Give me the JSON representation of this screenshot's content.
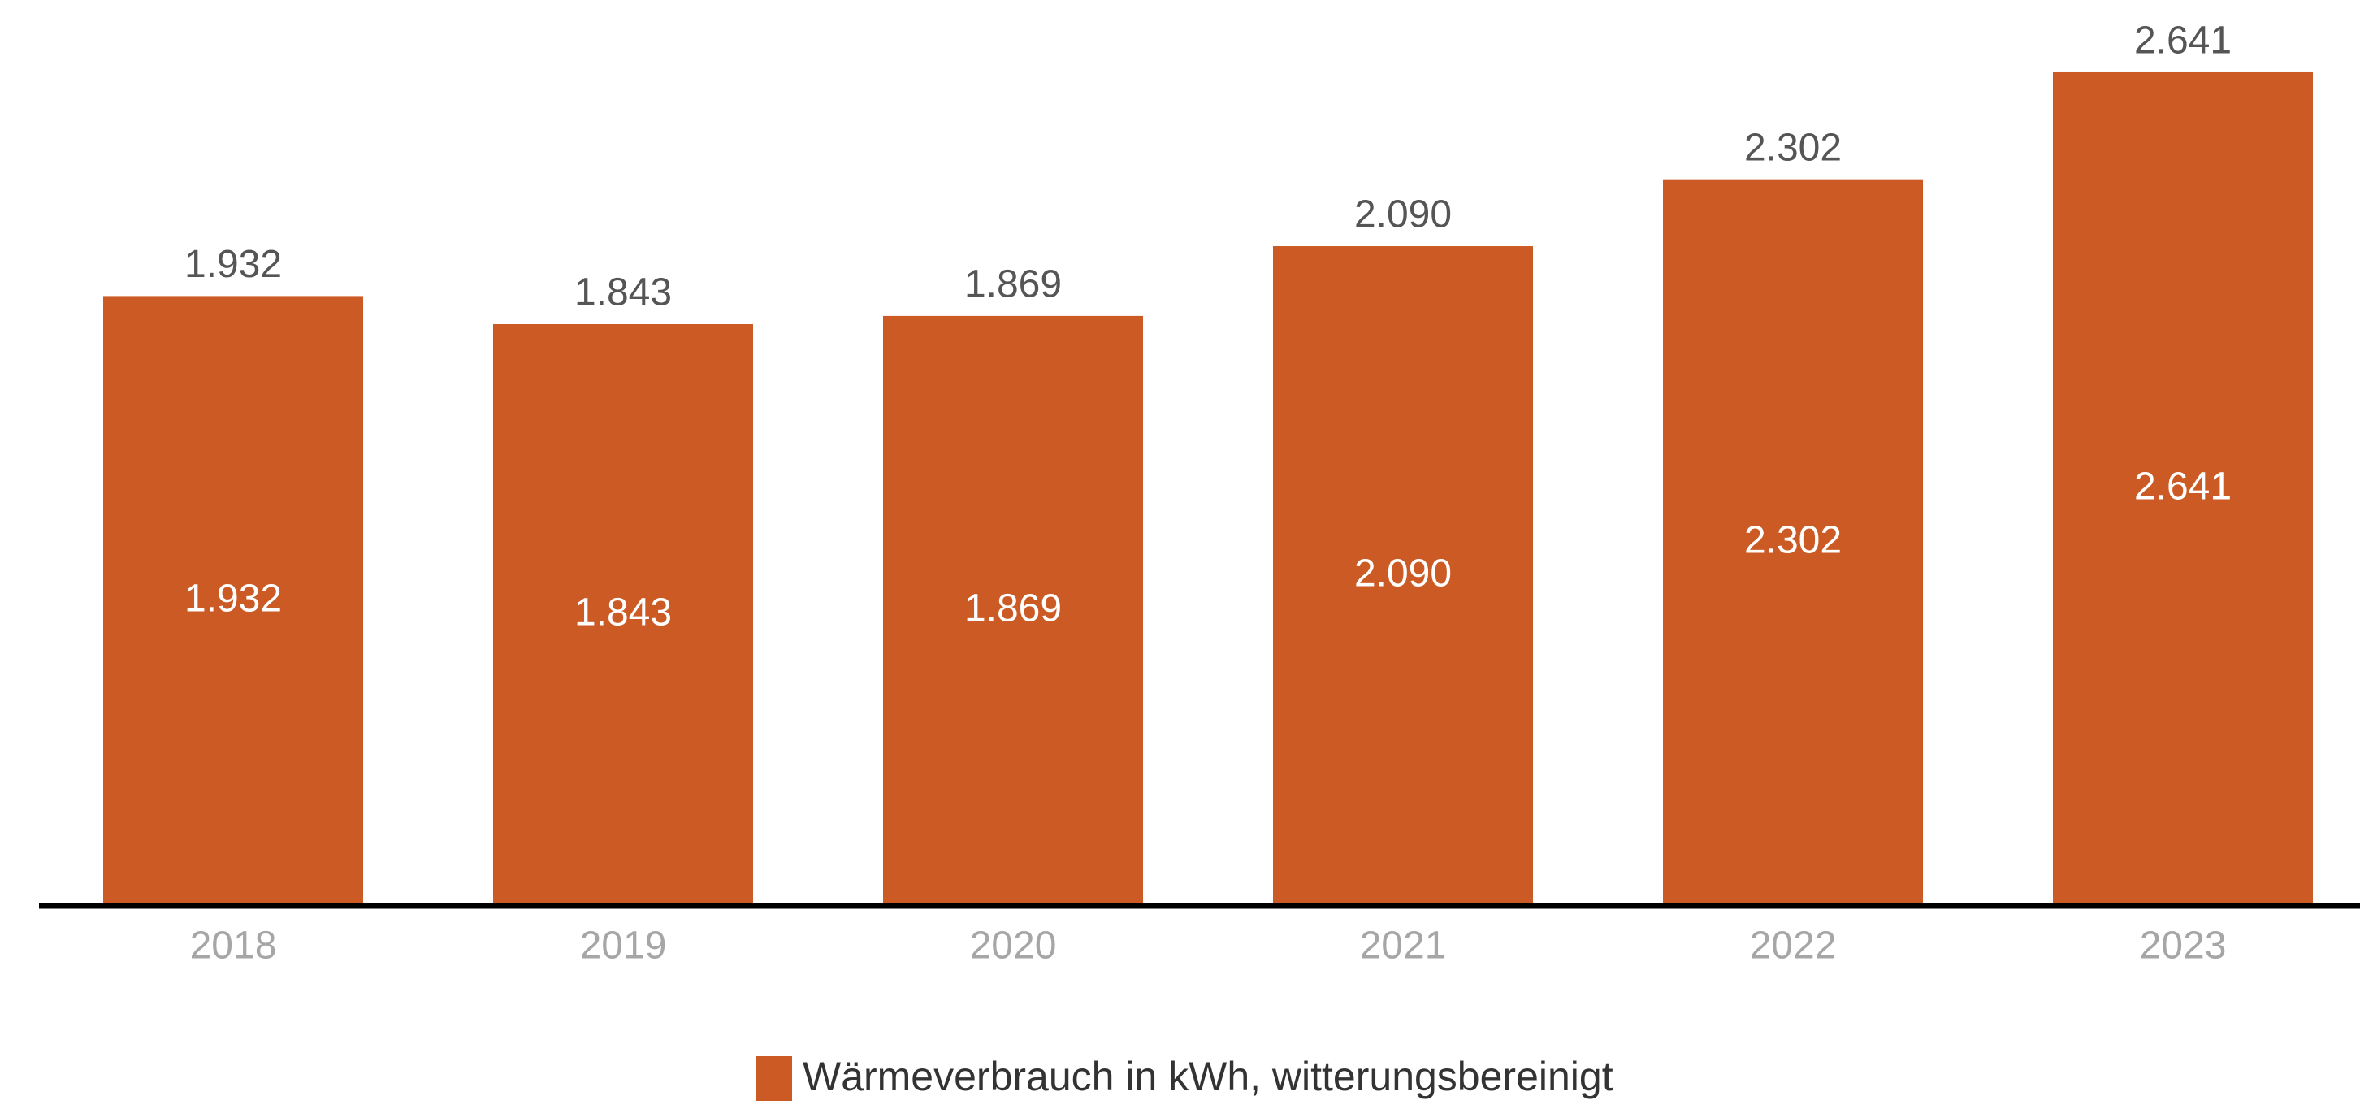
{
  "chart_data": {
    "type": "bar",
    "categories": [
      "2018",
      "2019",
      "2020",
      "2021",
      "2022",
      "2023"
    ],
    "series": [
      {
        "name": "Wärmeverbrauch in kWh, witterungsbereinigt",
        "color": "#cc5a24",
        "values": [
          1932,
          1843,
          1869,
          2090,
          2302,
          2641
        ],
        "value_labels": [
          "1.932",
          "1.843",
          "1.869",
          "2.090",
          "2.302",
          "2.641"
        ]
      }
    ],
    "ylim": [
      0,
      2870
    ]
  }
}
